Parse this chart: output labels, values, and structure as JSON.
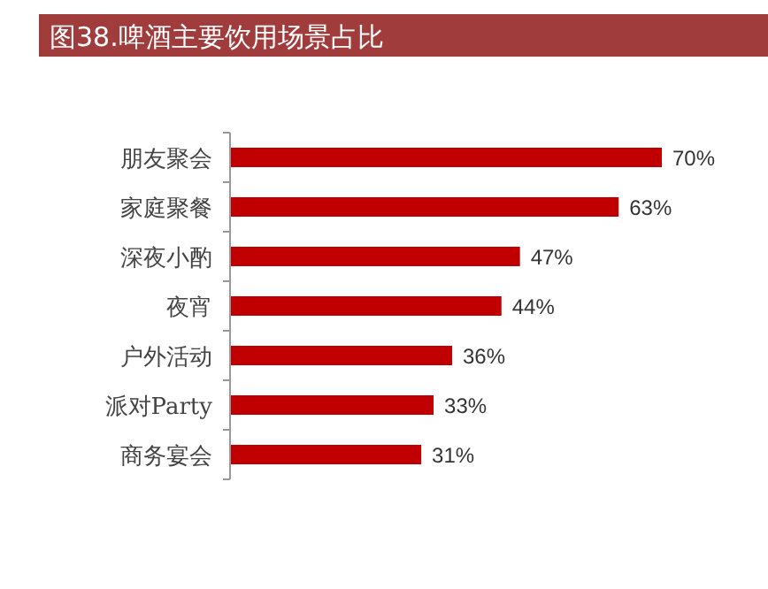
{
  "chart_data": {
    "type": "bar",
    "orientation": "horizontal",
    "title": "图38.啤酒主要饮用场景占比",
    "categories": [
      "朋友聚会",
      "家庭聚餐",
      "深夜小酌",
      "夜宵",
      "户外活动",
      "派对Party",
      "商务宴会"
    ],
    "values": [
      70,
      63,
      47,
      44,
      36,
      33,
      31
    ],
    "value_labels": [
      "70%",
      "63%",
      "47%",
      "44%",
      "36%",
      "33%",
      "31%"
    ],
    "color": "#c00000"
  }
}
